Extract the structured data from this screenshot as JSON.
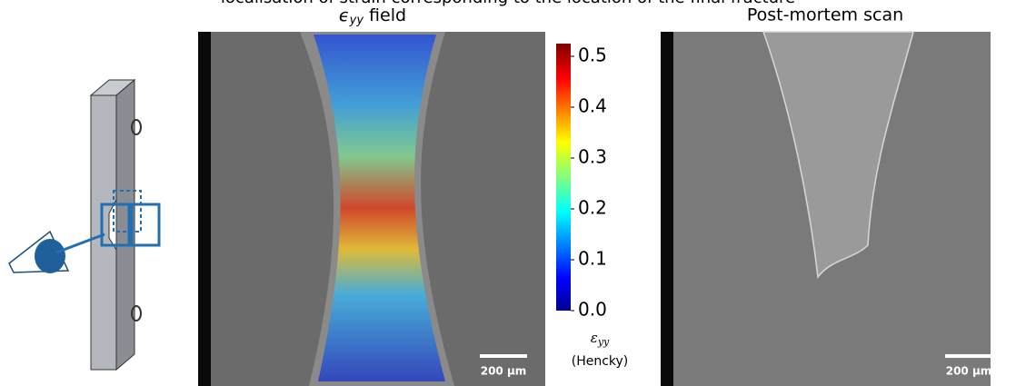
{
  "caption": "localisation of strain corresponding to the location of the final fracture",
  "field_panel": {
    "title_symbol": "ϵ",
    "title_subscript": "yy",
    "title_rest": " field",
    "scalebar": "200 µm"
  },
  "colorbar": {
    "symbol": "ε",
    "subscript": "yy",
    "sublabel": "(Hencky)",
    "lim": [
      0,
      0.5
    ],
    "ticks": [
      {
        "value": 0,
        "label": "0.0"
      },
      0.1,
      0.2,
      0.3,
      0.4,
      0.5
    ]
  },
  "scan_panel": {
    "title": "Post-mortem scan",
    "scalebar": "200 µm"
  }
}
